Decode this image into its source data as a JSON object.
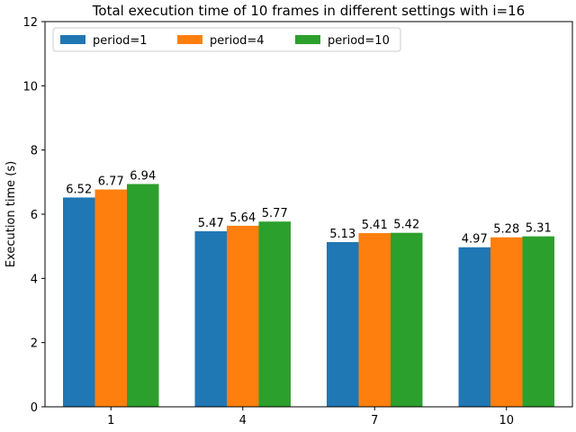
{
  "chart_data": {
    "type": "bar",
    "title": "Total execution time of 10 frames in different settings with i=16",
    "xlabel": "",
    "ylabel": "Execution time (s)",
    "ylim": [
      0,
      12
    ],
    "yticks": [
      0,
      2,
      4,
      6,
      8,
      10,
      12
    ],
    "categories": [
      "1",
      "4",
      "7",
      "10"
    ],
    "series": [
      {
        "name": "period=1",
        "color": "#1f77b4",
        "values": [
          6.52,
          5.47,
          5.13,
          4.97
        ]
      },
      {
        "name": "period=4",
        "color": "#ff7f0e",
        "values": [
          6.77,
          5.64,
          5.41,
          5.28
        ]
      },
      {
        "name": "period=10",
        "color": "#2ca02c",
        "values": [
          6.94,
          5.77,
          5.42,
          5.31
        ]
      }
    ],
    "data_labels": [
      [
        "6.52",
        "5.47",
        "5.13",
        "4.97"
      ],
      [
        "6.77",
        "5.64",
        "5.41",
        "5.28"
      ],
      [
        "6.94",
        "5.77",
        "5.42",
        "5.31"
      ]
    ],
    "legend": {
      "position": "top-left",
      "columns": 3
    },
    "grid": false
  }
}
